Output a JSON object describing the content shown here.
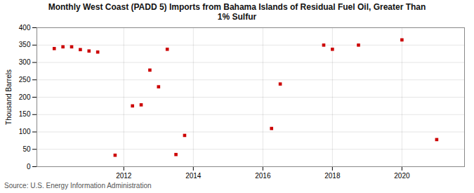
{
  "chart_data": {
    "type": "scatter",
    "title": "Monthly West Coast (PADD 5) Imports from Bahama Islands of Residual Fuel Oil, Greater Than\n1% Sulfur",
    "ylabel": "Thousand Barrels",
    "source": "Source: U.S. Energy Information Administration",
    "x": [
      2010.0,
      2010.25,
      2010.5,
      2010.75,
      2011.0,
      2011.25,
      2011.75,
      2012.25,
      2012.5,
      2012.75,
      2013.0,
      2013.25,
      2013.5,
      2013.75,
      2016.25,
      2016.5,
      2017.75,
      2018.0,
      2018.75,
      2020.0,
      2021.0
    ],
    "values": [
      340,
      345,
      345,
      337,
      333,
      330,
      33,
      175,
      178,
      278,
      230,
      338,
      35,
      90,
      110,
      238,
      350,
      338,
      350,
      365,
      78
    ],
    "color": "#cc0000",
    "marker": "square",
    "xlim": [
      2009.5,
      2021.8
    ],
    "xticks": [
      2012,
      2014,
      2016,
      2018,
      2020
    ],
    "ylim": [
      0,
      400
    ],
    "yticks": [
      0,
      50,
      100,
      150,
      200,
      250,
      300,
      350,
      400
    ],
    "grid": true
  }
}
